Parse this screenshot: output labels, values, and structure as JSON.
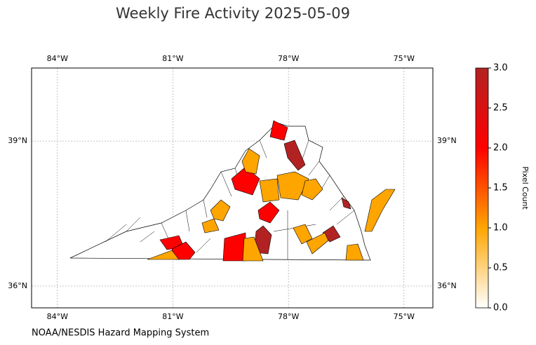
{
  "map": {
    "title": "Weekly Fire Activity 2025-05-09",
    "credit": "NOAA/NESDIS Hazard Mapping System",
    "xlim": [
      -84.67,
      -74.25
    ],
    "ylim": [
      35.55,
      40.51
    ],
    "xticks": [
      {
        "value": -84,
        "label": "84°W"
      },
      {
        "value": -81,
        "label": "81°W"
      },
      {
        "value": -78,
        "label": "78°W"
      },
      {
        "value": -75,
        "label": "75°W"
      }
    ],
    "yticks": [
      {
        "value": 36,
        "label": "36°N"
      },
      {
        "value": 39,
        "label": "39°N"
      }
    ],
    "grid": true,
    "colorbar": {
      "label": "Pixel Count",
      "clim": [
        0,
        3
      ],
      "colormap": [
        "#ffffff",
        "#ffa500",
        "#ff0000",
        "#b22222"
      ],
      "ticks": [
        {
          "value": 0,
          "label": "0.0"
        },
        {
          "value": 0.5,
          "label": "0.5"
        },
        {
          "value": 1,
          "label": "1.0"
        },
        {
          "value": 1.5,
          "label": "1.5"
        },
        {
          "value": 2,
          "label": "2.0"
        },
        {
          "value": 2.5,
          "label": "2.5"
        },
        {
          "value": 3,
          "label": "3.0"
        }
      ]
    },
    "county_values": [
      3,
      2,
      2,
      1,
      1,
      2,
      1,
      1,
      3,
      2,
      1,
      2,
      2,
      1,
      1,
      1,
      3,
      3,
      1,
      1,
      1,
      1
    ]
  }
}
